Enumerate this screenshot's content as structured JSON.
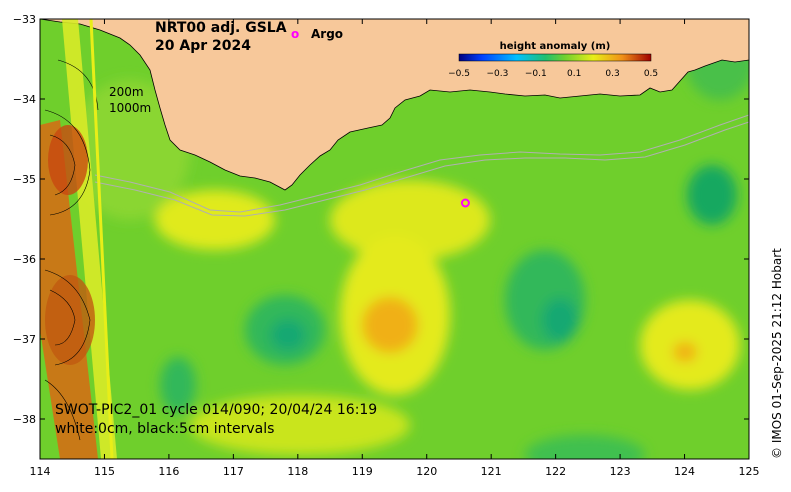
{
  "title": {
    "line1": "NRT00 adj. GSLA",
    "line2": "20 Apr 2024"
  },
  "argo_legend": {
    "symbol": "o",
    "label": "Argo",
    "color": "#ff00ff"
  },
  "contour_depths": {
    "shallow": "200m",
    "deep": "1000m"
  },
  "colorbar": {
    "title": "height anomaly (m)",
    "tick_labels": [
      "−0.5",
      "−0.3",
      "−0.1",
      "0.1",
      "0.3",
      "0.5"
    ],
    "range": [
      -0.5,
      0.5
    ]
  },
  "swot_info": {
    "line1": "SWOT-PIC2_01 cycle 014/090; 20/04/24 16:19",
    "line2": "white:0cm, black:5cm intervals"
  },
  "credit": "© IMOS 01-Sep-2025 21:12 Hobart",
  "axes": {
    "x_ticks": [
      114,
      115,
      116,
      117,
      118,
      119,
      120,
      121,
      122,
      123,
      124,
      125
    ],
    "y_ticks": [
      -33,
      -34,
      -35,
      -36,
      -37,
      -38
    ],
    "x_labels": [
      "114",
      "115",
      "116",
      "117",
      "118",
      "119",
      "120",
      "121",
      "122",
      "123",
      "124",
      "125"
    ],
    "y_labels": [
      "−33",
      "−34",
      "−35",
      "−36",
      "−37",
      "−38"
    ],
    "lon_range": [
      114,
      125
    ],
    "lat_range": [
      -38.5,
      -33
    ]
  },
  "map_data": {
    "argo_float": {
      "lon": 120.6,
      "lat": -35.3
    },
    "colors": {
      "land": "#f7c89a",
      "field_base": "#6fcf2c",
      "yellow_high": "#e8ee18",
      "orange_high": "#f0a018",
      "blue_low": "#12a86a"
    }
  }
}
